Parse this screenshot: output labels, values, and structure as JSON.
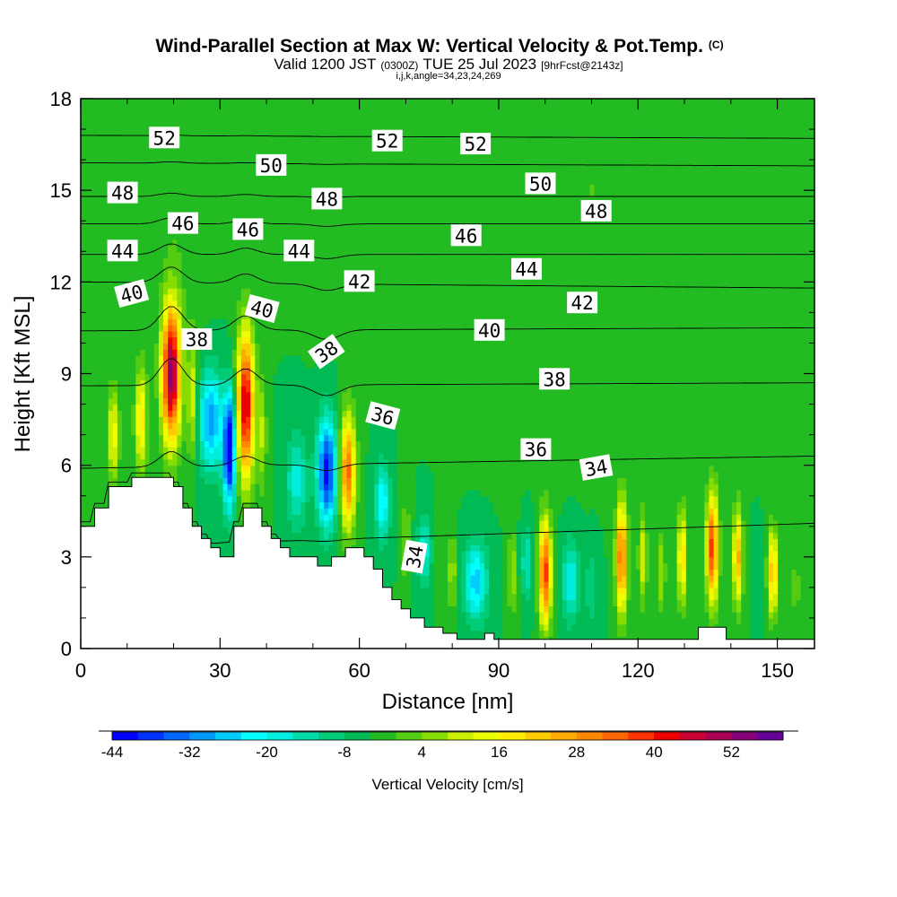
{
  "chart_data": {
    "type": "heatmap",
    "title": "Wind-Parallel Section at Max W: Vertical Velocity & Pot.Temp.",
    "title_mark": "(C)",
    "subtitle_main": "Valid 1200 JST",
    "subtitle_utc": "(0300Z)",
    "subtitle_date": "TUE 25 Jul 2023",
    "subtitle_fcst": "[9hrFcst@2143z]",
    "subtitle_2": "i,j,k,angle=34,23,24,269",
    "xlabel": "Distance [nm]",
    "ylabel": "Height [Kft MSL]",
    "xlim": [
      0,
      158
    ],
    "ylim": [
      0,
      18
    ],
    "x_ticks": [
      "0",
      "30",
      "60",
      "90",
      "120",
      "150"
    ],
    "x_tick_values": [
      0,
      30,
      60,
      90,
      120,
      150
    ],
    "y_ticks": [
      "0",
      "3",
      "6",
      "9",
      "12",
      "15",
      "18"
    ],
    "y_tick_values": [
      0,
      3,
      6,
      9,
      12,
      15,
      18
    ],
    "colorbar": {
      "label": "Vertical Velocity [cm/s]",
      "tick_labels": [
        "-44",
        "-32",
        "-20",
        "-8",
        "4",
        "16",
        "28",
        "40",
        "52"
      ],
      "tick_values": [
        -44,
        -32,
        -20,
        -8,
        4,
        16,
        28,
        40,
        52
      ],
      "min": -44,
      "max": 60,
      "colors": [
        "#0000ff",
        "#0033ff",
        "#0066ff",
        "#0099ff",
        "#00ccff",
        "#00ffff",
        "#00eedd",
        "#00ddaa",
        "#00cc77",
        "#00bb55",
        "#22bb22",
        "#55cc11",
        "#88dd00",
        "#ccee00",
        "#eeff00",
        "#ffee00",
        "#ffcc00",
        "#ffaa00",
        "#ff8800",
        "#ff6600",
        "#ff3300",
        "#ee0000",
        "#cc0033",
        "#aa0055",
        "#880077",
        "#660099"
      ]
    },
    "background_value": -4,
    "velocity_cores": [
      {
        "x": 7.0,
        "z": 7.0,
        "value": 20,
        "wx": 1.2,
        "wz": 1.5
      },
      {
        "x": 13.0,
        "z": 7.5,
        "value": 22,
        "wx": 1.3,
        "wz": 1.8
      },
      {
        "x": 19.5,
        "z": 9.0,
        "value": 58,
        "wx": 2.0,
        "wz": 2.2
      },
      {
        "x": 24.0,
        "z": 8.2,
        "value": 16,
        "wx": 1.0,
        "wz": 2.0
      },
      {
        "x": 28.0,
        "z": 7.5,
        "value": -26,
        "wx": 2.5,
        "wz": 1.6
      },
      {
        "x": 32.0,
        "z": 6.5,
        "value": -44,
        "wx": 1.3,
        "wz": 1.8
      },
      {
        "x": 35.5,
        "z": 8.0,
        "value": 50,
        "wx": 1.8,
        "wz": 2.4
      },
      {
        "x": 39.0,
        "z": 7.0,
        "value": 12,
        "wx": 1.0,
        "wz": 1.8
      },
      {
        "x": 46.5,
        "z": 5.5,
        "value": -14,
        "wx": 2.2,
        "wz": 1.6
      },
      {
        "x": 53.0,
        "z": 5.8,
        "value": -38,
        "wx": 2.0,
        "wz": 1.7
      },
      {
        "x": 57.5,
        "z": 5.8,
        "value": 38,
        "wx": 1.6,
        "wz": 1.8
      },
      {
        "x": 65.0,
        "z": 4.8,
        "value": -20,
        "wx": 1.6,
        "wz": 1.2
      },
      {
        "x": 70.0,
        "z": 3.5,
        "value": 8,
        "wx": 1.0,
        "wz": 1.5
      },
      {
        "x": 74.0,
        "z": 3.2,
        "value": -14,
        "wx": 1.5,
        "wz": 1.2
      },
      {
        "x": 77.0,
        "z": 3.0,
        "value": 6,
        "wx": 0.8,
        "wz": 1.2
      },
      {
        "x": 80.0,
        "z": 2.5,
        "value": 12,
        "wx": 0.9,
        "wz": 1.3
      },
      {
        "x": 85.0,
        "z": 2.2,
        "value": -22,
        "wx": 2.5,
        "wz": 1.3
      },
      {
        "x": 93.0,
        "z": 2.5,
        "value": 12,
        "wx": 0.9,
        "wz": 1.4
      },
      {
        "x": 96.0,
        "z": 2.8,
        "value": -12,
        "wx": 1.2,
        "wz": 1.2
      },
      {
        "x": 100.0,
        "z": 2.5,
        "value": 42,
        "wx": 1.3,
        "wz": 1.7
      },
      {
        "x": 105.5,
        "z": 2.2,
        "value": -16,
        "wx": 1.8,
        "wz": 1.3
      },
      {
        "x": 110.0,
        "z": 2.0,
        "value": -8,
        "wx": 1.3,
        "wz": 1.2
      },
      {
        "x": 116.5,
        "z": 3.0,
        "value": 38,
        "wx": 1.2,
        "wz": 1.8
      },
      {
        "x": 121.0,
        "z": 3.0,
        "value": 16,
        "wx": 0.9,
        "wz": 1.5
      },
      {
        "x": 125.0,
        "z": 2.5,
        "value": 12,
        "wx": 0.9,
        "wz": 1.3
      },
      {
        "x": 129.5,
        "z": 3.0,
        "value": 24,
        "wx": 1.0,
        "wz": 1.6
      },
      {
        "x": 136.0,
        "z": 3.3,
        "value": 42,
        "wx": 1.2,
        "wz": 1.8
      },
      {
        "x": 141.5,
        "z": 3.0,
        "value": 30,
        "wx": 1.0,
        "wz": 1.6
      },
      {
        "x": 145.5,
        "z": 2.3,
        "value": -4,
        "wx": 1.0,
        "wz": 1.2
      },
      {
        "x": 149.0,
        "z": 2.5,
        "value": 30,
        "wx": 1.0,
        "wz": 1.4
      },
      {
        "x": 154.0,
        "z": 2.0,
        "value": 6,
        "wx": 1.0,
        "wz": 1.2
      },
      {
        "x": 22.0,
        "z": 15.0,
        "value": 4,
        "wx": 6.0,
        "wz": 4.0
      },
      {
        "x": 60.0,
        "z": 15.0,
        "value": 4,
        "wx": 8.0,
        "wz": 3.5
      },
      {
        "x": 110.0,
        "z": 15.0,
        "value": 4,
        "wx": 12.0,
        "wz": 4.0
      },
      {
        "x": 145.0,
        "z": 14.0,
        "value": 4,
        "wx": 6.0,
        "wz": 4.0
      },
      {
        "x": 100.0,
        "z": 9.0,
        "value": 3,
        "wx": 15.0,
        "wz": 2.5
      }
    ],
    "terrain": [
      [
        0,
        4.0
      ],
      [
        3,
        4.0
      ],
      [
        3,
        4.6
      ],
      [
        6,
        4.6
      ],
      [
        6,
        5.3
      ],
      [
        11,
        5.3
      ],
      [
        11,
        5.6
      ],
      [
        20,
        5.6
      ],
      [
        20,
        5.3
      ],
      [
        22,
        5.3
      ],
      [
        22,
        4.6
      ],
      [
        24,
        4.6
      ],
      [
        24,
        4.0
      ],
      [
        26,
        4.0
      ],
      [
        26,
        3.6
      ],
      [
        28,
        3.6
      ],
      [
        28,
        3.3
      ],
      [
        30,
        3.3
      ],
      [
        30,
        3.0
      ],
      [
        33,
        3.0
      ],
      [
        33,
        4.0
      ],
      [
        35,
        4.0
      ],
      [
        35,
        4.6
      ],
      [
        39,
        4.6
      ],
      [
        39,
        4.0
      ],
      [
        41,
        4.0
      ],
      [
        41,
        3.6
      ],
      [
        43,
        3.6
      ],
      [
        43,
        3.3
      ],
      [
        45,
        3.3
      ],
      [
        45,
        3.0
      ],
      [
        51,
        3.0
      ],
      [
        51,
        2.7
      ],
      [
        54,
        2.7
      ],
      [
        54,
        3.0
      ],
      [
        57,
        3.0
      ],
      [
        57,
        3.3
      ],
      [
        61,
        3.3
      ],
      [
        61,
        3.0
      ],
      [
        63,
        3.0
      ],
      [
        63,
        2.6
      ],
      [
        65,
        2.6
      ],
      [
        65,
        2.0
      ],
      [
        67,
        2.0
      ],
      [
        67,
        1.6
      ],
      [
        69,
        1.6
      ],
      [
        69,
        1.3
      ],
      [
        71,
        1.3
      ],
      [
        71,
        1.0
      ],
      [
        74,
        1.0
      ],
      [
        74,
        0.7
      ],
      [
        78,
        0.7
      ],
      [
        78,
        0.5
      ],
      [
        81,
        0.5
      ],
      [
        81,
        0.3
      ],
      [
        87,
        0.3
      ],
      [
        87,
        0.5
      ],
      [
        89,
        0.5
      ],
      [
        89,
        0.3
      ],
      [
        133,
        0.3
      ],
      [
        133,
        0.7
      ],
      [
        139,
        0.7
      ],
      [
        139,
        0.3
      ],
      [
        158,
        0.3
      ]
    ],
    "theta_contours": [
      {
        "level": 34,
        "z_left": 3.3,
        "z_right": 4.1
      },
      {
        "level": 36,
        "z_left": 5.9,
        "z_right": 6.3
      },
      {
        "level": 38,
        "z_left": 8.6,
        "z_right": 8.7
      },
      {
        "level": 40,
        "z_left": 10.4,
        "z_right": 10.5
      },
      {
        "level": 42,
        "z_left": 12.0,
        "z_right": 11.8
      },
      {
        "level": 44,
        "z_left": 12.9,
        "z_right": 12.9
      },
      {
        "level": 46,
        "z_left": 13.9,
        "z_right": 13.9
      },
      {
        "level": 48,
        "z_left": 14.8,
        "z_right": 14.8
      },
      {
        "level": 50,
        "z_left": 15.9,
        "z_right": 15.8
      },
      {
        "level": 52,
        "z_left": 16.8,
        "z_right": 16.7
      }
    ],
    "contour_labels": [
      {
        "text": "52",
        "x": 18,
        "z": 16.7,
        "angle": 0
      },
      {
        "text": "52",
        "x": 66,
        "z": 16.6,
        "angle": 0
      },
      {
        "text": "52",
        "x": 85,
        "z": 16.5,
        "angle": 0
      },
      {
        "text": "50",
        "x": 41,
        "z": 15.8,
        "angle": 0
      },
      {
        "text": "50",
        "x": 99,
        "z": 15.2,
        "angle": 0
      },
      {
        "text": "48",
        "x": 9,
        "z": 14.9,
        "angle": 0
      },
      {
        "text": "48",
        "x": 53,
        "z": 14.7,
        "angle": 0
      },
      {
        "text": "48",
        "x": 111,
        "z": 14.3,
        "angle": 0
      },
      {
        "text": "46",
        "x": 22,
        "z": 13.9,
        "angle": 0
      },
      {
        "text": "46",
        "x": 36,
        "z": 13.7,
        "angle": 0
      },
      {
        "text": "46",
        "x": 83,
        "z": 13.5,
        "angle": 0
      },
      {
        "text": "44",
        "x": 9,
        "z": 13.0,
        "angle": 0
      },
      {
        "text": "44",
        "x": 47,
        "z": 13.0,
        "angle": 0
      },
      {
        "text": "44",
        "x": 96,
        "z": 12.4,
        "angle": 0
      },
      {
        "text": "42",
        "x": 60,
        "z": 12.0,
        "angle": 0
      },
      {
        "text": "42",
        "x": 108,
        "z": 11.3,
        "angle": 0
      },
      {
        "text": "40",
        "x": 11,
        "z": 11.6,
        "angle": -15
      },
      {
        "text": "40",
        "x": 39,
        "z": 11.1,
        "angle": 15
      },
      {
        "text": "40",
        "x": 88,
        "z": 10.4,
        "angle": 0
      },
      {
        "text": "38",
        "x": 25,
        "z": 10.1,
        "angle": 0
      },
      {
        "text": "38",
        "x": 53,
        "z": 9.7,
        "angle": -35
      },
      {
        "text": "38",
        "x": 102,
        "z": 8.8,
        "angle": 0
      },
      {
        "text": "36",
        "x": 65,
        "z": 7.6,
        "angle": 15
      },
      {
        "text": "36",
        "x": 98,
        "z": 6.5,
        "angle": 0
      },
      {
        "text": "34",
        "x": 111,
        "z": 5.9,
        "angle": -10
      },
      {
        "text": "34",
        "x": 72,
        "z": 3.0,
        "angle": -80
      }
    ]
  }
}
